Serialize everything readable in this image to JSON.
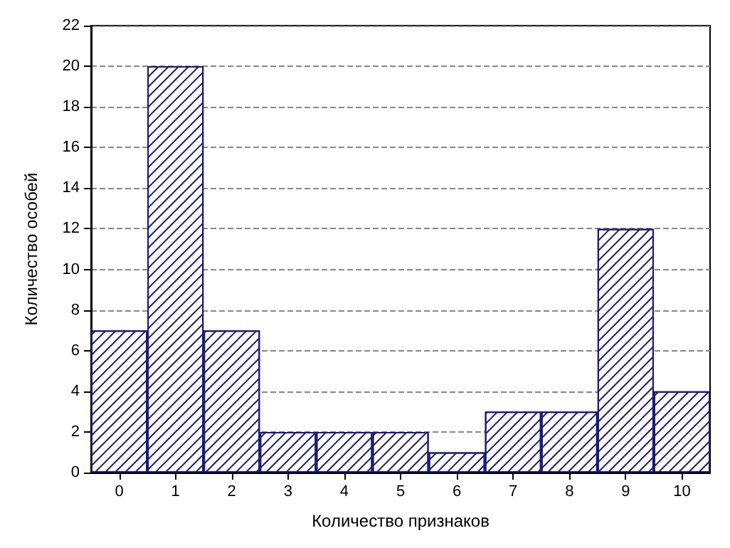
{
  "chart_data": {
    "type": "bar",
    "xlabel": "Количество признаков",
    "ylabel": "Количество особей",
    "categories": [
      "0",
      "1",
      "2",
      "3",
      "4",
      "5",
      "6",
      "7",
      "8",
      "9",
      "10"
    ],
    "values": [
      7,
      20,
      7,
      2,
      2,
      2,
      1,
      3,
      3,
      12,
      4
    ],
    "color": "#1a1a6e",
    "ylim": [
      0,
      22
    ],
    "yticks": [
      0,
      2,
      4,
      6,
      8,
      10,
      12,
      14,
      16,
      18,
      20,
      22
    ],
    "grid": "y"
  }
}
